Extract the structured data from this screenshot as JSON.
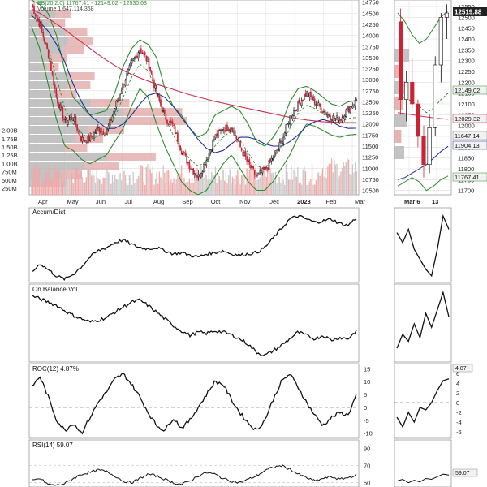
{
  "colors": {
    "price": "#111111",
    "bb": "#2e8b2e",
    "ma50": "#1f2f9a",
    "ma200": "#c83250",
    "volume_up": "#c9c9c9",
    "volume_down": "#f2a8a8",
    "vbp": "#e0a0a0",
    "vbp_grey": "#b4b4b4",
    "candle_up": "#ffffff",
    "candle_down": "#cc2233",
    "grid": "#dddddd",
    "label_bg": "#f2f2f2"
  },
  "header": {
    "bb_legend": "BB(20,2.0) 11767.41 - 12149.02 - 12530.63",
    "volume_legend": "Volume 1,647,114,368"
  },
  "panels": {
    "accum_label": "Accum/Dist",
    "obv_label": "On Balance Vol",
    "roc_label": "ROC(12) 4.87%",
    "rsi_label": "RSI(14) 59.07"
  },
  "value_tags": {
    "main_last": "12519.88",
    "upper_band": "12530.63",
    "middle_band": "12149.02",
    "lower_band": "11767.41",
    "ma200": "12029.32",
    "ma50": "11904.13",
    "ma_other": "11647.14",
    "roc_last": "4.87",
    "rsi_last": "59.07"
  },
  "chart_data": [
    {
      "type": "candlestick",
      "title": "",
      "x_ticks": [
        "Apr",
        "May",
        "Jun",
        "Jul",
        "Aug",
        "Sep",
        "Oct",
        "Nov",
        "Dec",
        "2023",
        "Feb",
        "Mar"
      ],
      "y_ticks": [
        10500,
        10750,
        11000,
        11250,
        11500,
        11750,
        12000,
        12250,
        12500,
        12750,
        13000,
        13250,
        13500,
        13750,
        14000,
        14250,
        14500,
        14750
      ],
      "ylim": [
        10400,
        14800
      ],
      "volume_ticks": [
        "250M",
        "500M",
        "750M",
        "1.00B",
        "1.25B",
        "1.50B",
        "1.75B",
        "2.00B"
      ],
      "close_path": [
        14700,
        14250,
        13600,
        12600,
        12050,
        12150,
        11650,
        11650,
        11900,
        11800,
        12350,
        12900,
        13350,
        13700,
        13400,
        12700,
        12150,
        11950,
        11400,
        11050,
        10800,
        11200,
        11700,
        11900,
        11950,
        11500,
        11100,
        10800,
        10950,
        11250,
        11600,
        12150,
        12450,
        12700,
        12500,
        12300,
        12150,
        12100,
        12350,
        12520
      ],
      "series": [
        {
          "name": "BB upper",
          "values": [
            14800,
            14700,
            14500,
            14000,
            13200,
            12600,
            12400,
            12200,
            12250,
            12300,
            12700,
            13300,
            13700,
            13900,
            13800,
            13500,
            12800,
            12400,
            12200,
            11900,
            11700,
            11800,
            12200,
            12300,
            12400,
            12300,
            12000,
            11600,
            11500,
            11700,
            12000,
            12500,
            12800,
            12850,
            12750,
            12600,
            12450,
            12400,
            12500,
            12530
          ]
        },
        {
          "name": "BB lower",
          "values": [
            14200,
            13700,
            12900,
            12100,
            11500,
            11400,
            11200,
            11100,
            11200,
            11300,
            11600,
            11900,
            12400,
            12800,
            12600,
            12000,
            11500,
            11100,
            10700,
            10500,
            10400,
            10500,
            10800,
            11100,
            11300,
            11000,
            10700,
            10500,
            10500,
            10700,
            11000,
            11300,
            11700,
            12000,
            11950,
            11850,
            11750,
            11700,
            11750,
            11767
          ]
        },
        {
          "name": "50-day MA",
          "values": [
            14450,
            14300,
            14100,
            13800,
            13400,
            12900,
            12500,
            12200,
            12050,
            11900,
            11900,
            12000,
            12200,
            12450,
            12650,
            12700,
            12600,
            12400,
            12150,
            11900,
            11650,
            11450,
            11350,
            11400,
            11550,
            11700,
            11700,
            11650,
            11550,
            11500,
            11500,
            11600,
            11750,
            11950,
            12050,
            12100,
            12050,
            11950,
            11900,
            11904
          ]
        },
        {
          "name": "200-day MA",
          "values": [
            14600,
            14500,
            14380,
            14260,
            14130,
            13990,
            13850,
            13710,
            13570,
            13440,
            13320,
            13210,
            13120,
            13040,
            12970,
            12900,
            12840,
            12780,
            12720,
            12660,
            12610,
            12560,
            12510,
            12470,
            12430,
            12390,
            12350,
            12310,
            12270,
            12230,
            12190,
            12150,
            12120,
            12090,
            12070,
            12050,
            12040,
            12035,
            12030,
            12029
          ]
        }
      ]
    },
    {
      "type": "line",
      "title": "Accum/Dist",
      "values": [
        0.1,
        0.25,
        0.15,
        0.05,
        0.0,
        0.08,
        0.2,
        0.35,
        0.45,
        0.5,
        0.58,
        0.62,
        0.55,
        0.5,
        0.48,
        0.5,
        0.45,
        0.4,
        0.42,
        0.38,
        0.35,
        0.4,
        0.42,
        0.45,
        0.4,
        0.38,
        0.4,
        0.42,
        0.5,
        0.65,
        0.8,
        0.95,
        1.0,
        0.95,
        0.9,
        0.92,
        0.95,
        0.88,
        0.85,
        0.97
      ]
    },
    {
      "type": "line",
      "title": "On Balance Vol",
      "values": [
        0.95,
        0.9,
        0.85,
        0.8,
        0.72,
        0.65,
        0.6,
        0.55,
        0.58,
        0.62,
        0.7,
        0.78,
        0.85,
        0.88,
        0.8,
        0.7,
        0.6,
        0.5,
        0.42,
        0.35,
        0.4,
        0.38,
        0.42,
        0.4,
        0.36,
        0.3,
        0.22,
        0.1,
        0.05,
        0.12,
        0.2,
        0.3,
        0.4,
        0.35,
        0.3,
        0.35,
        0.28,
        0.32,
        0.3,
        0.42
      ]
    },
    {
      "type": "line",
      "title": "ROC(12)",
      "y_ticks": [
        -10,
        -5,
        0,
        5,
        10,
        15
      ],
      "ylim": [
        -12,
        17
      ],
      "values": [
        8,
        12,
        4,
        -5,
        -9,
        -6,
        -10,
        -4,
        2,
        6,
        11,
        13,
        9,
        4,
        -2,
        -7,
        -9,
        -4,
        -8,
        -5,
        0,
        5,
        10,
        9,
        3,
        -2,
        -6,
        -9,
        -5,
        3,
        10,
        13,
        8,
        2,
        -3,
        -7,
        -4,
        -2,
        -3,
        4.87
      ]
    },
    {
      "type": "line",
      "title": "RSI(14)",
      "y_ticks": [
        50,
        70,
        90
      ],
      "ylim": [
        45,
        100
      ],
      "values": [
        52,
        55,
        48,
        47,
        49,
        55,
        60,
        62,
        65,
        63,
        58,
        52,
        50,
        55,
        60,
        58,
        54,
        50,
        48,
        52,
        58,
        62,
        60,
        55,
        52,
        50,
        54,
        58,
        64,
        68,
        70,
        66,
        60,
        56,
        52,
        55,
        57,
        54,
        56,
        59.07
      ]
    },
    {
      "type": "candlestick",
      "title": "",
      "x_ticks": [
        "Mar 6",
        "13"
      ],
      "y_ticks": [
        11700,
        11750,
        11800,
        11850,
        11900,
        11950,
        12000,
        12050,
        12100,
        12150,
        12200,
        12250,
        12300,
        12350,
        12400,
        12450,
        12500,
        12550
      ],
      "ylim": [
        11680,
        12580
      ],
      "candles": [
        {
          "o": 12480,
          "h": 12540,
          "l": 12050,
          "c": 12120
        },
        {
          "o": 12120,
          "h": 12250,
          "l": 12020,
          "c": 12200
        },
        {
          "o": 12200,
          "h": 12310,
          "l": 12080,
          "c": 12100
        },
        {
          "o": 12100,
          "h": 12120,
          "l": 11900,
          "c": 11950
        },
        {
          "o": 11950,
          "h": 12000,
          "l": 11760,
          "c": 11820
        },
        {
          "o": 11820,
          "h": 12050,
          "l": 11780,
          "c": 11990
        },
        {
          "o": 11990,
          "h": 12320,
          "l": 11950,
          "c": 12280
        },
        {
          "o": 12280,
          "h": 12520,
          "l": 12200,
          "c": 12500
        },
        {
          "o": 12500,
          "h": 12560,
          "l": 12400,
          "c": 12520
        }
      ]
    }
  ]
}
